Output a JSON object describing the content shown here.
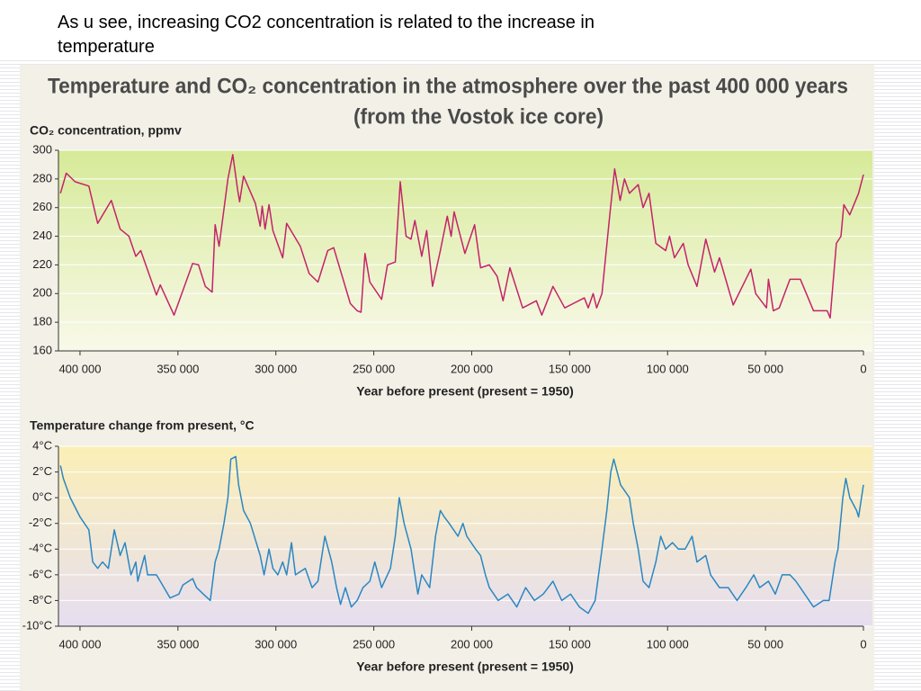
{
  "slide_text": [
    "As u see, increasing CO2 concentration is related to the increase in",
    "temperature"
  ],
  "figure_title": [
    "Temperature and CO₂ concentration in the atmosphere over the past 400 000 years",
    "(from the Vostok ice core)"
  ],
  "chart_data": [
    {
      "type": "line",
      "y_label": "CO₂ concentration, ppmv",
      "x_label": "Year before present (present = 1950)",
      "color": "#c4236a",
      "grid": true,
      "xlim": [
        411000,
        0
      ],
      "xticks": [
        {
          "value": 400000,
          "label": "400 000"
        },
        {
          "value": 350000,
          "label": "350 000"
        },
        {
          "value": 300000,
          "label": "300 000"
        },
        {
          "value": 250000,
          "label": "250 000"
        },
        {
          "value": 200000,
          "label": "200 000"
        },
        {
          "value": 150000,
          "label": "150 000"
        },
        {
          "value": 100000,
          "label": "100 000"
        },
        {
          "value": 50000,
          "label": "50 000"
        },
        0
      ],
      "ylim": [
        160,
        300
      ],
      "yticks": [
        160,
        180,
        200,
        220,
        240,
        260,
        280,
        300
      ],
      "x": [
        410000,
        407000,
        402500,
        395500,
        391000,
        384000,
        379500,
        375000,
        371500,
        369000,
        361000,
        359000,
        352000,
        342500,
        339500,
        336000,
        332500,
        331000,
        329000,
        324500,
        322000,
        319500,
        318500,
        316500,
        310500,
        308000,
        307000,
        305500,
        303500,
        301500,
        296500,
        294500,
        287500,
        283000,
        278500,
        273500,
        270500,
        262000,
        258500,
        256500,
        254500,
        252000,
        246000,
        243000,
        239000,
        236500,
        233500,
        231000,
        229000,
        225500,
        223000,
        220000,
        216000,
        212500,
        210500,
        209000,
        203500,
        198500,
        195500,
        191000,
        187000,
        184000,
        180500,
        174000,
        167000,
        164200,
        158500,
        152500,
        142500,
        140500,
        138000,
        136200,
        133500,
        129500,
        127000,
        124200,
        122000,
        119500,
        115000,
        112500,
        109500,
        106000,
        101000,
        99000,
        96500,
        92000,
        89500,
        85000,
        80500,
        76000,
        73500,
        66500,
        57500,
        55000,
        49500,
        48500,
        46000,
        43000,
        37500,
        32200,
        25500,
        18500,
        17000,
        13800,
        11500,
        10000,
        7000,
        2500,
        0
      ],
      "values": [
        270,
        284,
        278,
        275,
        249,
        265,
        245,
        240,
        226,
        230,
        199,
        206,
        185,
        221,
        220,
        205,
        201,
        248,
        233,
        280,
        297,
        272,
        264,
        282,
        263,
        247,
        261,
        245,
        262,
        244,
        225,
        249,
        233,
        214,
        208,
        230,
        232,
        193,
        188,
        187,
        228,
        208,
        196,
        220,
        222,
        278,
        240,
        238,
        251,
        226,
        244,
        205,
        230,
        254,
        240,
        257,
        228,
        248,
        218,
        220,
        212,
        195,
        218,
        190,
        195,
        185,
        205,
        190,
        197,
        190,
        200,
        190,
        200,
        255,
        287,
        265,
        280,
        270,
        276,
        260,
        270,
        235,
        230,
        240,
        225,
        235,
        220,
        205,
        238,
        215,
        225,
        192,
        217,
        200,
        190,
        210,
        188,
        190,
        210,
        210,
        188,
        188,
        183,
        235,
        240,
        262,
        255,
        270,
        283
      ]
    },
    {
      "type": "line",
      "y_label": "Temperature change from present, °C",
      "x_label": "Year before present (present = 1950)",
      "color": "#2a87c2",
      "grid": true,
      "xlim": [
        411000,
        0
      ],
      "xticks": [
        {
          "value": 400000,
          "label": "400 000"
        },
        {
          "value": 350000,
          "label": "350 000"
        },
        {
          "value": 300000,
          "label": "300 000"
        },
        {
          "value": 250000,
          "label": "250 000"
        },
        {
          "value": 200000,
          "label": "200 000"
        },
        {
          "value": 150000,
          "label": "150 000"
        },
        {
          "value": 100000,
          "label": "100 000"
        },
        {
          "value": 50000,
          "label": "50 000"
        },
        0
      ],
      "ylim": [
        -10,
        4
      ],
      "yticks": [
        {
          "value": -10,
          "label": "-10°C"
        },
        {
          "value": -8,
          "label": "-8°C"
        },
        {
          "value": -6,
          "label": "-6°C"
        },
        {
          "value": -4,
          "label": "-4°C"
        },
        {
          "value": -2,
          "label": "-2°C"
        },
        {
          "value": 0,
          "label": "0°C"
        },
        {
          "value": 2,
          "label": "2°C"
        },
        {
          "value": 4,
          "label": "4°C"
        }
      ],
      "x": [
        410000,
        408500,
        405000,
        400000,
        395500,
        393500,
        391000,
        388500,
        385500,
        382500,
        379500,
        377000,
        374000,
        371500,
        370500,
        367000,
        365500,
        361000,
        359000,
        354000,
        349500,
        347500,
        342500,
        340500,
        337000,
        333500,
        331000,
        329000,
        326500,
        324500,
        323000,
        320500,
        319000,
        316500,
        313000,
        308000,
        306000,
        303500,
        301500,
        299000,
        296500,
        294500,
        292000,
        290000,
        285000,
        281500,
        278500,
        275000,
        271500,
        269000,
        267000,
        264500,
        261500,
        258500,
        255500,
        252000,
        249500,
        246000,
        241500,
        239000,
        237000,
        234500,
        231000,
        227500,
        225500,
        221500,
        218500,
        216000,
        214000,
        211500,
        207000,
        204500,
        202500,
        198000,
        195500,
        193000,
        191000,
        186500,
        181500,
        177000,
        172500,
        168000,
        163500,
        158500,
        154000,
        149500,
        145000,
        140500,
        137000,
        133500,
        131000,
        129000,
        127500,
        124000,
        119500,
        117500,
        115000,
        112500,
        109500,
        106000,
        103500,
        101000,
        97500,
        94500,
        91000,
        87500,
        85000,
        80500,
        78000,
        73500,
        69000,
        64500,
        60000,
        56000,
        53000,
        48500,
        45000,
        41500,
        37500,
        34500,
        30000,
        25500,
        20500,
        17500,
        14500,
        13000,
        10500,
        9000,
        7000,
        3500,
        2500,
        0
      ],
      "values": [
        2.5,
        1.5,
        0,
        -1.5,
        -2.5,
        -5,
        -5.5,
        -5,
        -5.5,
        -2.5,
        -4.5,
        -3.5,
        -6,
        -5,
        -6.5,
        -4.5,
        -6,
        -6,
        -6.5,
        -7.8,
        -7.5,
        -6.8,
        -6.3,
        -7,
        -7.5,
        -8,
        -5,
        -4,
        -2,
        0,
        3,
        3.2,
        1,
        -1,
        -2,
        -4.5,
        -6,
        -4,
        -5.5,
        -6,
        -5,
        -6,
        -3.5,
        -6,
        -5.5,
        -7,
        -6.5,
        -3,
        -5,
        -7,
        -8.3,
        -7,
        -8.5,
        -8,
        -7,
        -6.5,
        -5,
        -7,
        -5.5,
        -3,
        0,
        -2,
        -4,
        -7.5,
        -6,
        -7,
        -3,
        -1,
        -1.5,
        -2,
        -3,
        -2,
        -3,
        -4,
        -4.5,
        -6,
        -7,
        -8,
        -7.5,
        -8.5,
        -7,
        -8,
        -7.5,
        -6.5,
        -8,
        -7.5,
        -8.5,
        -9,
        -8,
        -4,
        -1,
        2,
        3,
        1,
        0,
        -2,
        -4,
        -6.5,
        -7,
        -5,
        -3,
        -4,
        -3.5,
        -4,
        -4,
        -3,
        -5,
        -4.5,
        -6,
        -7,
        -7,
        -8,
        -7,
        -6,
        -7,
        -6.5,
        -7.5,
        -6,
        -6,
        -6.5,
        -7.5,
        -8.5,
        -8,
        -8,
        -5,
        -4,
        0,
        1.5,
        0,
        -1,
        -1.5,
        1
      ]
    }
  ]
}
